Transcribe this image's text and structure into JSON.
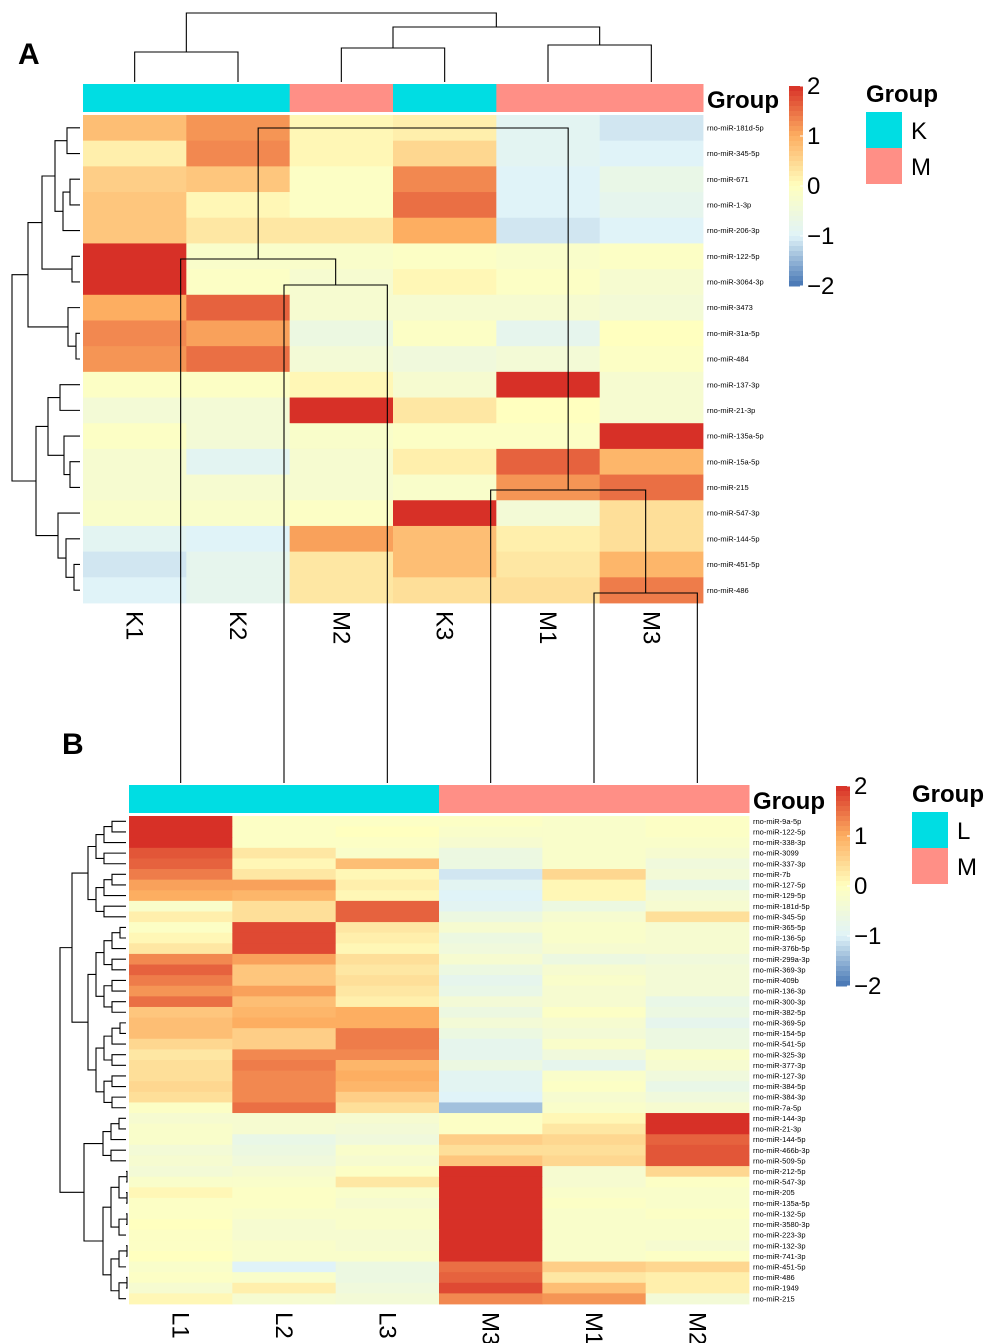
{
  "colors": {
    "low": "#4575b4",
    "mid_low": "#e0f3f8",
    "mid": "#ffffbf",
    "mid_high": "#fdae61",
    "high": "#d73027",
    "group_k": "#00dde3",
    "group_l": "#00dde3",
    "group_m": "#ff8f86"
  },
  "chart_data": [
    {
      "type": "heatmap",
      "panel": "A",
      "annotation_title": "Group",
      "columns": [
        "K1",
        "K2",
        "M2",
        "K3",
        "M1",
        "M3"
      ],
      "column_groups": [
        "K",
        "K",
        "M",
        "K",
        "M",
        "M"
      ],
      "rows": [
        "rno-miR-181d-5p",
        "rno-miR-345-5p",
        "rno-miR-671",
        "rno-miR-1-3p",
        "rno-miR-206-3p",
        "rno-miR-122-5p",
        "rno-miR-3064-3p",
        "rno-miR-3473",
        "rno-miR-31a-5p",
        "rno-miR-484",
        "rno-miR-137-3p",
        "rno-miR-21-3p",
        "rno-miR-135a-5p",
        "rno-miR-15a-5p",
        "rno-miR-215",
        "rno-miR-547-3p",
        "rno-miR-144-5p",
        "rno-miR-451-5p",
        "rno-miR-486"
      ],
      "values": [
        [
          0.8,
          1.2,
          0.1,
          0.2,
          -0.9,
          -1.1
        ],
        [
          0.2,
          1.3,
          0.1,
          0.5,
          -0.9,
          -1.0
        ],
        [
          0.6,
          0.7,
          -0.1,
          1.3,
          -1.0,
          -0.7
        ],
        [
          0.7,
          0.1,
          -0.1,
          1.5,
          -1.0,
          -0.8
        ],
        [
          0.7,
          0.3,
          0.3,
          1.0,
          -1.1,
          -1.0
        ],
        [
          2.0,
          -0.2,
          -0.2,
          -0.1,
          -0.2,
          -0.1
        ],
        [
          2.0,
          -0.1,
          -0.3,
          0.1,
          -0.1,
          -0.3
        ],
        [
          1.0,
          1.6,
          -0.3,
          -0.3,
          -0.3,
          -0.4
        ],
        [
          1.3,
          1.1,
          -0.6,
          -0.1,
          -0.8,
          0.0
        ],
        [
          1.2,
          1.5,
          -0.4,
          -0.5,
          -0.4,
          -0.1
        ],
        [
          -0.1,
          -0.1,
          0.1,
          -0.3,
          2.0,
          -0.3
        ],
        [
          -0.4,
          -0.4,
          2.0,
          0.3,
          0.0,
          -0.3
        ],
        [
          -0.1,
          -0.4,
          -0.2,
          -0.1,
          -0.1,
          2.0
        ],
        [
          -0.3,
          -0.9,
          -0.3,
          0.2,
          1.6,
          0.9
        ],
        [
          -0.3,
          -0.3,
          -0.3,
          -0.2,
          1.2,
          1.5
        ],
        [
          -0.2,
          -0.2,
          -0.1,
          2.0,
          -0.4,
          0.4
        ],
        [
          -0.9,
          -1.0,
          1.1,
          0.8,
          0.2,
          0.4
        ],
        [
          -1.1,
          -0.8,
          0.3,
          0.8,
          0.3,
          0.9
        ],
        [
          -1.0,
          -0.8,
          0.3,
          0.4,
          0.4,
          1.4
        ]
      ],
      "scale": {
        "min": -2,
        "max": 2,
        "ticks": [
          2,
          1,
          0,
          -1,
          -2
        ]
      },
      "legend": {
        "title": "Group",
        "items": [
          "K",
          "M"
        ]
      }
    },
    {
      "type": "heatmap",
      "panel": "B",
      "annotation_title": "Group",
      "columns": [
        "L1",
        "L2",
        "L3",
        "M3",
        "M1",
        "M2"
      ],
      "column_groups": [
        "L",
        "L",
        "L",
        "M",
        "M",
        "M"
      ],
      "rows": [
        "rno-miR-9a-5p",
        "rno-miR-122-5p",
        "rno-miR-338-3p",
        "rno-miR-3099",
        "rno-miR-337-3p",
        "rno-miR-7b",
        "rno-miR-127-5p",
        "rno-miR-129-5p",
        "rno-miR-181d-5p",
        "rno-miR-345-5p",
        "rno-miR-365-5p",
        "rno-miR-136-5p",
        "rno-miR-376b-5p",
        "rno-miR-299a-3p",
        "rno-miR-369-3p",
        "rno-miR-409b",
        "rno-miR-136-3p",
        "rno-miR-300-3p",
        "rno-miR-382-5p",
        "rno-miR-369-5p",
        "rno-miR-154-5p",
        "rno-miR-541-5p",
        "rno-miR-325-3p",
        "rno-miR-377-3p",
        "rno-miR-127-3p",
        "rno-miR-384-5p",
        "rno-miR-384-3p",
        "rno-miR-7a-5p",
        "rno-miR-144-3p",
        "rno-miR-21-3p",
        "rno-miR-144-5p",
        "rno-miR-466b-3p",
        "rno-miR-509-5p",
        "rno-miR-212-5p",
        "rno-miR-547-3p",
        "rno-miR-205",
        "rno-miR-135a-5p",
        "rno-miR-132-5p",
        "rno-miR-3580-3p",
        "rno-miR-223-3p",
        "rno-miR-132-3p",
        "rno-miR-741-3p",
        "rno-miR-451-5p",
        "rno-miR-486",
        "rno-miR-1949",
        "rno-miR-215"
      ],
      "values": [
        [
          2.0,
          -0.1,
          -0.1,
          -0.1,
          -0.2,
          -0.1
        ],
        [
          2.0,
          -0.1,
          0.0,
          -0.2,
          -0.2,
          -0.1
        ],
        [
          2.0,
          -0.1,
          -0.1,
          -0.3,
          -0.2,
          -0.2
        ],
        [
          1.7,
          0.3,
          -0.2,
          -0.6,
          -0.2,
          -0.3
        ],
        [
          1.6,
          0.1,
          0.8,
          -0.6,
          -0.2,
          -0.5
        ],
        [
          1.4,
          0.3,
          0.1,
          -1.1,
          0.5,
          -0.4
        ],
        [
          1.1,
          1.1,
          0.2,
          -0.9,
          0.1,
          -0.7
        ],
        [
          1.0,
          0.9,
          0.1,
          -1.0,
          0.1,
          -0.4
        ],
        [
          -0.2,
          0.4,
          1.6,
          -0.9,
          -0.6,
          -0.3
        ],
        [
          0.2,
          0.4,
          1.6,
          -0.6,
          -0.3,
          0.4
        ],
        [
          -0.1,
          1.8,
          0.3,
          -0.3,
          -0.2,
          -0.3
        ],
        [
          0.1,
          1.8,
          0.2,
          -0.6,
          -0.2,
          -0.3
        ],
        [
          0.3,
          1.8,
          0.1,
          -0.5,
          -0.3,
          -0.3
        ],
        [
          1.3,
          1.1,
          0.4,
          -0.3,
          -0.6,
          -0.5
        ],
        [
          1.6,
          0.7,
          0.3,
          -0.6,
          -0.3,
          -0.4
        ],
        [
          1.4,
          0.7,
          0.4,
          -0.8,
          -0.2,
          -0.4
        ],
        [
          1.2,
          1.1,
          0.3,
          -0.7,
          -0.3,
          -0.4
        ],
        [
          1.5,
          0.8,
          0.2,
          -0.4,
          -0.3,
          -0.7
        ],
        [
          0.7,
          0.9,
          1.0,
          -0.6,
          -0.1,
          -0.6
        ],
        [
          0.8,
          1.0,
          1.0,
          -0.4,
          -0.3,
          -0.8
        ],
        [
          0.8,
          0.6,
          1.4,
          -0.6,
          -0.4,
          -0.6
        ],
        [
          0.5,
          0.6,
          1.4,
          -0.8,
          -0.2,
          -0.6
        ],
        [
          0.3,
          1.3,
          1.3,
          -0.8,
          -0.5,
          -0.2
        ],
        [
          0.4,
          1.4,
          0.9,
          -0.6,
          -0.8,
          -0.3
        ],
        [
          0.4,
          1.3,
          1.0,
          -0.9,
          -0.2,
          -0.5
        ],
        [
          0.5,
          1.3,
          0.9,
          -0.9,
          -0.1,
          -0.7
        ],
        [
          0.4,
          1.3,
          0.6,
          -1.0,
          -0.3,
          -0.5
        ],
        [
          -0.1,
          1.5,
          0.4,
          -1.4,
          -0.2,
          -0.3
        ],
        [
          -0.3,
          -0.3,
          -0.3,
          -0.1,
          0.1,
          2.0
        ],
        [
          -0.2,
          -0.3,
          -0.4,
          -0.1,
          0.3,
          2.0
        ],
        [
          -0.2,
          -0.7,
          -0.5,
          0.6,
          0.5,
          1.6
        ],
        [
          -0.4,
          -0.6,
          -0.2,
          0.4,
          0.4,
          1.7
        ],
        [
          -0.3,
          -0.5,
          -0.3,
          0.7,
          0.5,
          1.7
        ],
        [
          -0.4,
          -0.3,
          -0.1,
          2.0,
          -0.3,
          0.5
        ],
        [
          -0.2,
          -0.2,
          0.3,
          2.0,
          -0.3,
          -0.1
        ],
        [
          0.1,
          -0.1,
          -0.2,
          2.0,
          -0.2,
          -0.2
        ],
        [
          -0.1,
          -0.1,
          -0.3,
          2.0,
          -0.1,
          -0.2
        ],
        [
          -0.1,
          -0.2,
          -0.2,
          2.0,
          -0.2,
          -0.1
        ],
        [
          0.0,
          -0.3,
          -0.2,
          2.0,
          -0.2,
          -0.2
        ],
        [
          -0.1,
          -0.3,
          -0.3,
          2.0,
          -0.2,
          -0.2
        ],
        [
          -0.1,
          -0.2,
          -0.3,
          2.0,
          -0.2,
          -0.3
        ],
        [
          0.0,
          -0.2,
          -0.2,
          2.0,
          -0.2,
          -0.1
        ],
        [
          -0.2,
          -1.0,
          -0.6,
          1.5,
          0.6,
          0.5
        ],
        [
          -0.1,
          -0.2,
          -0.6,
          1.6,
          0.3,
          0.2
        ],
        [
          -0.3,
          0.2,
          -0.5,
          1.8,
          0.8,
          0.2
        ],
        [
          0.1,
          -0.3,
          -0.4,
          1.3,
          1.2,
          -0.4
        ]
      ],
      "scale": {
        "min": -2,
        "max": 2,
        "ticks": [
          2,
          1,
          0,
          -1,
          -2
        ]
      },
      "legend": {
        "title": "Group",
        "items": [
          "L",
          "M"
        ]
      }
    }
  ]
}
